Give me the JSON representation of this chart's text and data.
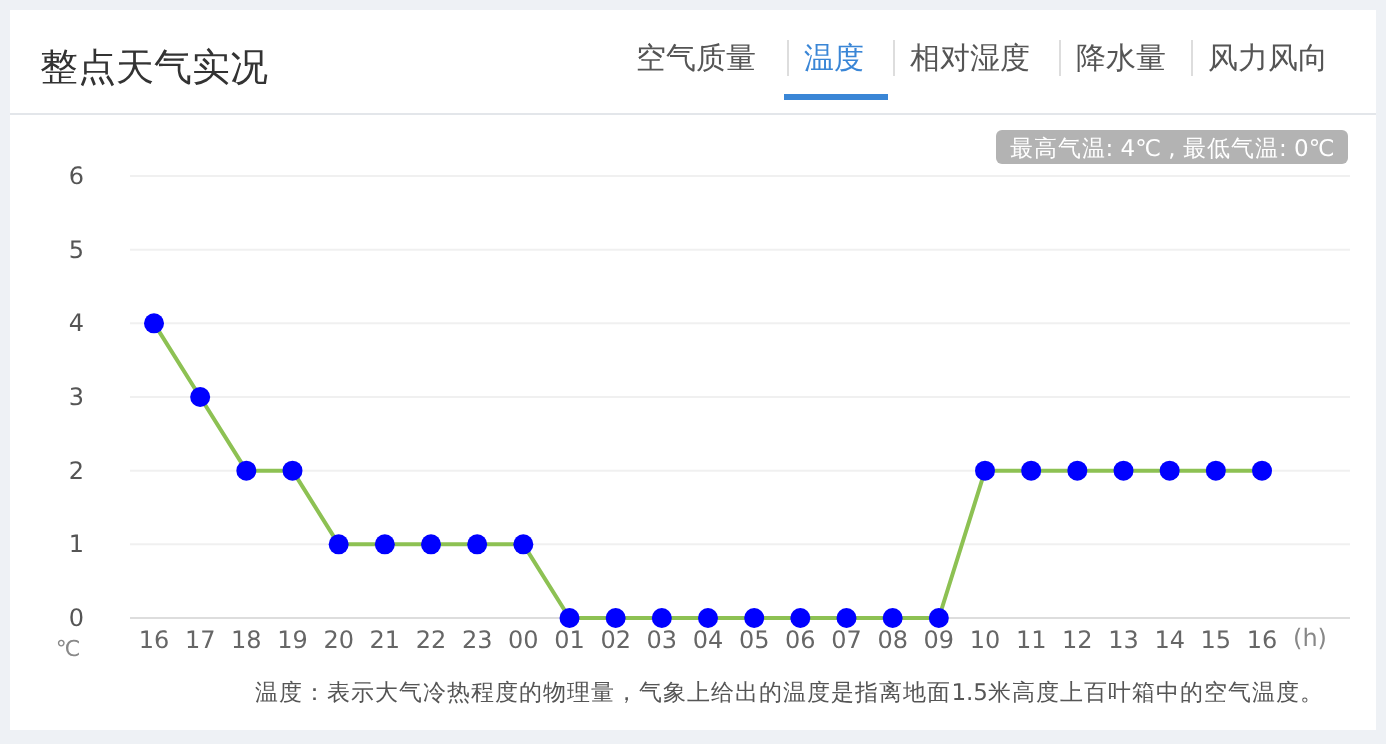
{
  "chart_data": {
    "type": "line",
    "title": "整点天气实况",
    "xlabel": "(h)",
    "ylabel": "℃",
    "categories": [
      "16",
      "17",
      "18",
      "19",
      "20",
      "21",
      "22",
      "23",
      "00",
      "01",
      "02",
      "03",
      "04",
      "05",
      "06",
      "07",
      "08",
      "09",
      "10",
      "11",
      "12",
      "13",
      "14",
      "15",
      "16"
    ],
    "series": [
      {
        "color": "#8dc153",
        "values": [
          4,
          3,
          2,
          2,
          1,
          1,
          1,
          1,
          1,
          0,
          0,
          0,
          0,
          0,
          0,
          0,
          0,
          0,
          2,
          2,
          2,
          2,
          2,
          2,
          2
        ]
      }
    ],
    "ylim": [
      0,
      6
    ],
    "yticks": [
      0,
      1,
      2,
      3,
      4,
      5,
      6
    ],
    "grid": "y",
    "marker": "circle",
    "line_style": "solid",
    "annotations": [
      "空气质量",
      "温度",
      "相对湿度",
      "降水量",
      "风力风向",
      "最高气温: 4℃ , 最低气温: 0℃",
      "温度：表示大气冷热程度的物理量，气象上给出的温度是指离地面1.5米高度上百叶箱中的空气温度。"
    ]
  }
}
